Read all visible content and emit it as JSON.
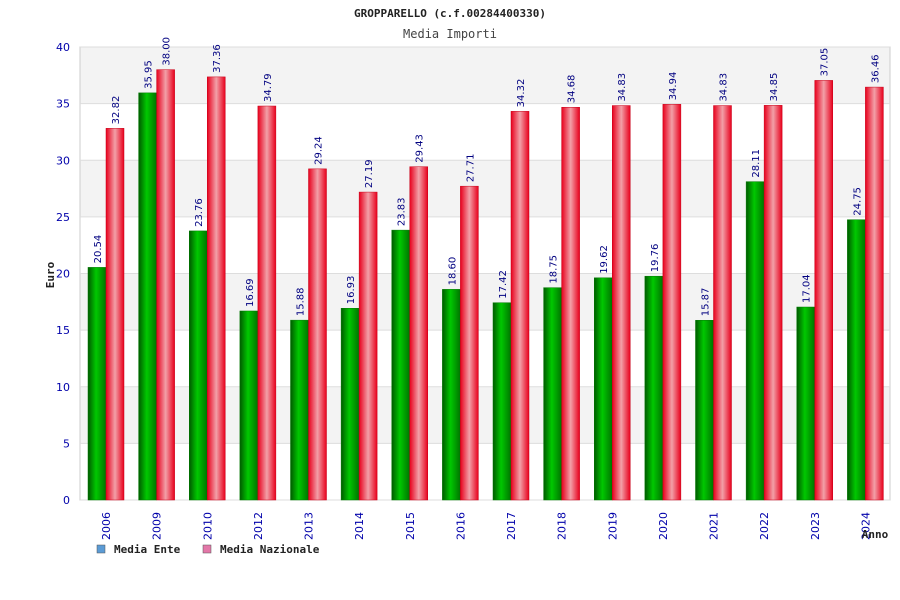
{
  "chart_data": {
    "type": "bar",
    "title": "GROPPARELLO (c.f.00284400330)",
    "subtitle": "Media Importi",
    "xlabel": "Anno",
    "ylabel": "Euro",
    "ylim": [
      0,
      40
    ],
    "yticks": [
      0,
      5,
      10,
      15,
      20,
      25,
      30,
      35,
      40
    ],
    "grid": true,
    "legend_position": "bottom-left",
    "categories": [
      "2006",
      "2009",
      "2010",
      "2012",
      "2013",
      "2014",
      "2015",
      "2016",
      "2017",
      "2018",
      "2019",
      "2020",
      "2021",
      "2022",
      "2023",
      "2024"
    ],
    "series": [
      {
        "name": "Media Ente",
        "legend_color": "#5b9bd5",
        "bar_color": "#00b000",
        "values": [
          20.54,
          35.95,
          23.76,
          16.69,
          15.88,
          16.93,
          23.83,
          18.6,
          17.42,
          18.75,
          19.62,
          19.76,
          15.87,
          28.11,
          17.04,
          24.75
        ],
        "labels": [
          "20.54",
          "35.95",
          "23.76",
          "16.69",
          "15.88",
          "16.93",
          "23.83",
          "18.60",
          "17.42",
          "18.75",
          "19.62",
          "19.76",
          "15.87",
          "28.11",
          "17.04",
          "24.75"
        ]
      },
      {
        "name": "Media Nazionale",
        "legend_color": "#e377a8",
        "bar_color": "#e8001c",
        "values": [
          32.82,
          38.0,
          37.36,
          34.79,
          29.24,
          27.19,
          29.43,
          27.71,
          34.32,
          34.68,
          34.83,
          34.94,
          34.83,
          34.85,
          37.05,
          36.46
        ],
        "labels": [
          "32.82",
          "38.00",
          "37.36",
          "34.79",
          "29.24",
          "27.19",
          "29.43",
          "27.71",
          "34.32",
          "34.68",
          "34.83",
          "34.94",
          "34.83",
          "34.85",
          "37.05",
          "36.46"
        ]
      }
    ]
  }
}
